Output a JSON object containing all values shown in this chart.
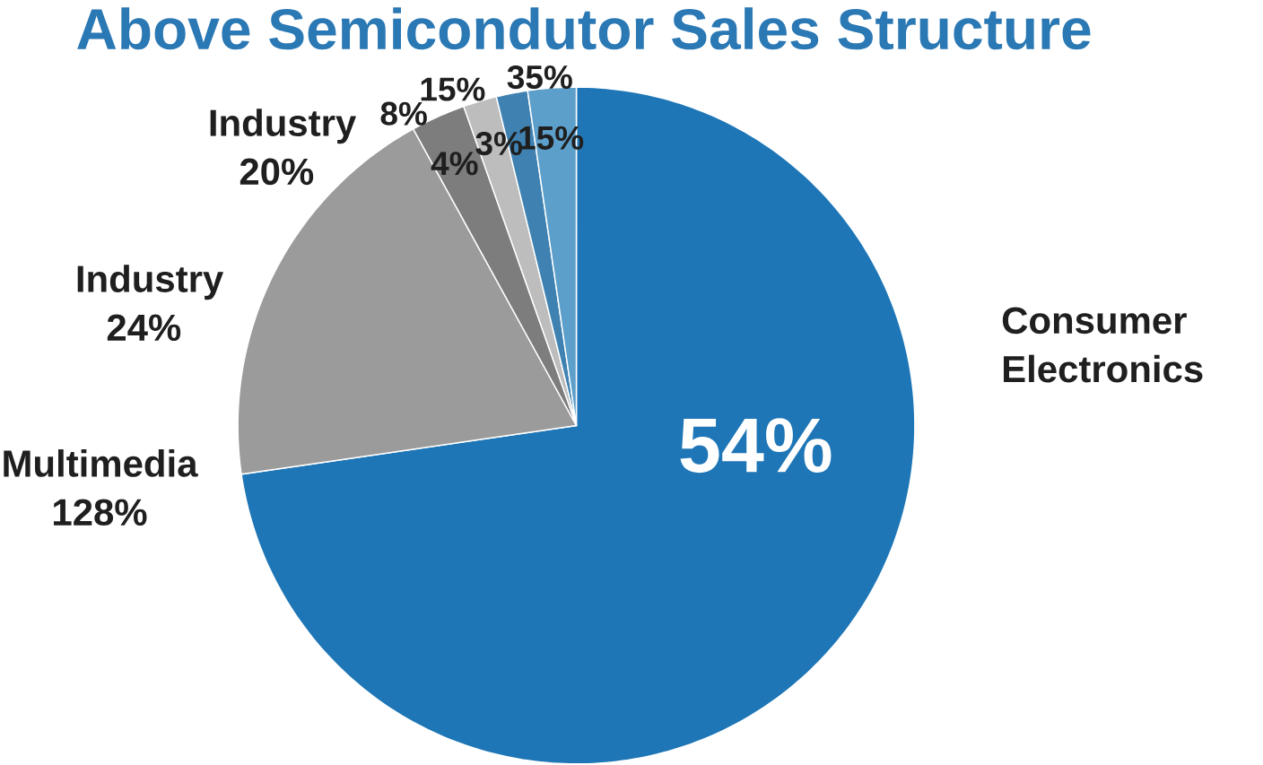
{
  "chart_data": {
    "type": "pie",
    "title": "Above Semicondutor Sales Structure",
    "categories": [
      "Consumer Electronics",
      null,
      null,
      null,
      null,
      null
    ],
    "values": [
      72.7,
      19.3,
      2.6,
      1.6,
      1.5,
      2.3
    ],
    "colors": [
      "#1e76b6",
      "#9b9b9b",
      "#7d7d7d",
      "#bdbdbd",
      "#3f82b2",
      "#5c9fca"
    ],
    "annotations": [
      "54%",
      "Industry 20%",
      "Industry 24%",
      "Multimedia 128%",
      "8%",
      "15%",
      "35%",
      "4%",
      "3%",
      "15%"
    ]
  }
}
